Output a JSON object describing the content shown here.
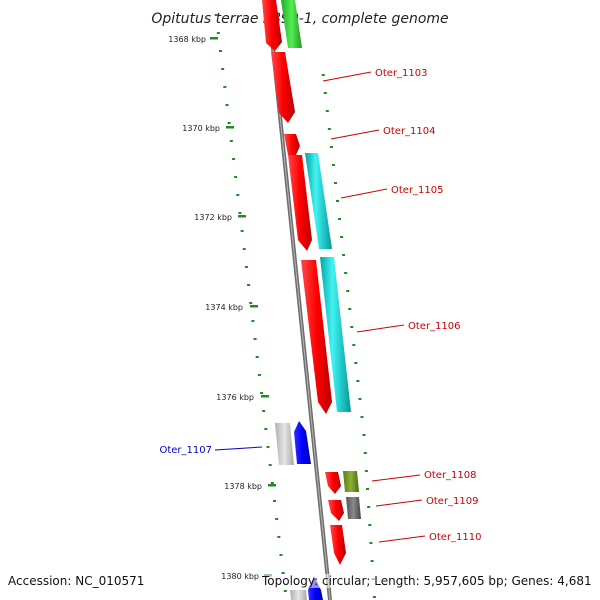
{
  "title": "Opitutus terrae PB90-1, complete genome",
  "footer": {
    "accession": "Accession: NC_010571",
    "summary": "Topology: circular; Length: 5,957,605 bp; Genes: 4,681"
  },
  "scale": {
    "unit": "kbp",
    "ticks": [
      "1368 kbp",
      "1370 kbp",
      "1372 kbp",
      "1374 kbp",
      "1376 kbp",
      "1378 kbp",
      "1380 kbp"
    ]
  },
  "colors": {
    "backbone": "#808080",
    "forward_gene": "#ff0000",
    "forward_label": "#cc0000",
    "reverse_label": "#0000cc",
    "green_feature": "#33cc33",
    "cyan_feature": "#00cccc",
    "olive_feature": "#6b8e23",
    "gray_feature": "#606060",
    "blue_feature": "#0000ee",
    "light_gray_feature": "#cccccc",
    "tick_color": "#228b22"
  },
  "genes": [
    {
      "label": "Oter_1103",
      "color": "red"
    },
    {
      "label": "Oter_1104",
      "color": "red"
    },
    {
      "label": "Oter_1105",
      "color": "red"
    },
    {
      "label": "Oter_1106",
      "color": "red"
    },
    {
      "label": "Oter_1107",
      "color": "blue"
    },
    {
      "label": "Oter_1108",
      "color": "red"
    },
    {
      "label": "Oter_1109",
      "color": "red"
    },
    {
      "label": "Oter_1110",
      "color": "red"
    }
  ]
}
